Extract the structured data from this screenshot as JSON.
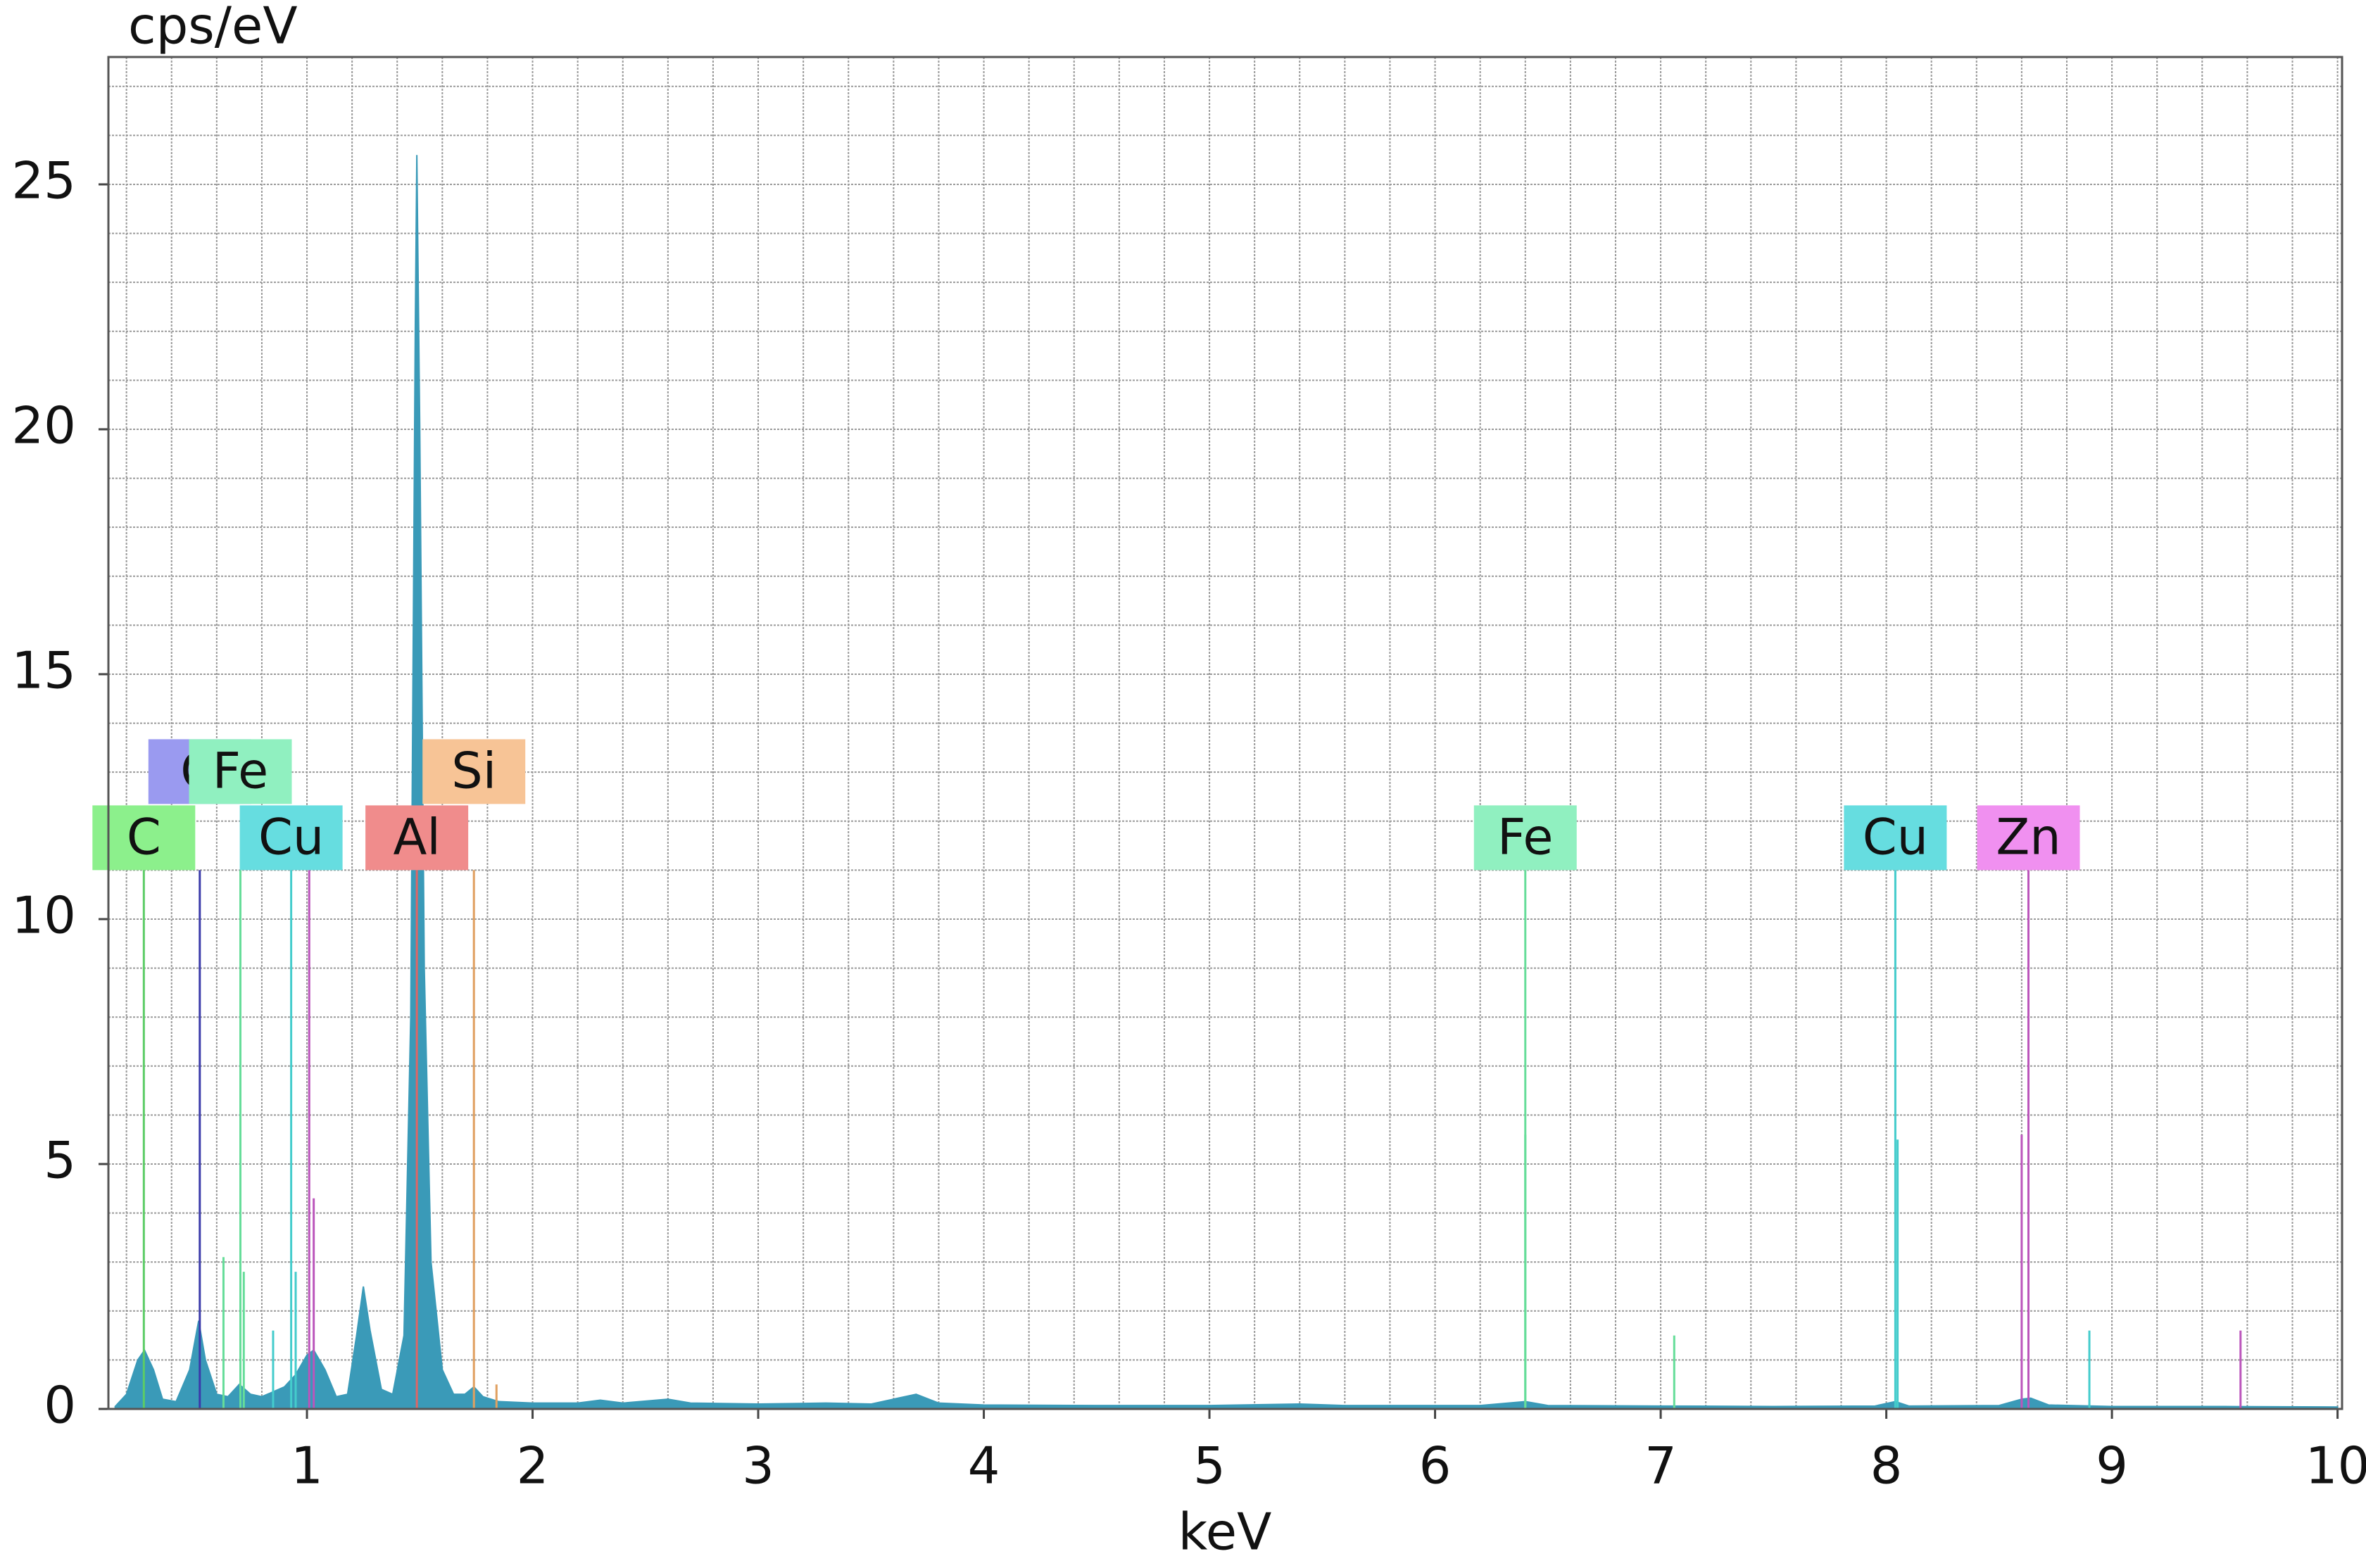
{
  "chart_data": {
    "type": "area",
    "ylabel": "cps/eV",
    "xlabel": "keV",
    "xlim": [
      0.12,
      10.02
    ],
    "ylim": [
      0,
      27.6
    ],
    "xticks": [
      1,
      2,
      3,
      4,
      5,
      6,
      7,
      8,
      9,
      10
    ],
    "yticks": [
      0,
      5,
      10,
      15,
      20,
      25
    ],
    "grid": true,
    "xgrid_step": 0.2,
    "ygrid_step": 1,
    "series": [
      {
        "color": "#3a9ab8",
        "x": [
          0.15,
          0.2,
          0.25,
          0.28,
          0.32,
          0.36,
          0.42,
          0.48,
          0.52,
          0.55,
          0.6,
          0.65,
          0.7,
          0.75,
          0.8,
          0.85,
          0.9,
          0.95,
          1.0,
          1.03,
          1.08,
          1.13,
          1.18,
          1.22,
          1.25,
          1.28,
          1.33,
          1.38,
          1.43,
          1.46,
          1.48,
          1.487,
          1.5,
          1.52,
          1.55,
          1.6,
          1.65,
          1.7,
          1.74,
          1.78,
          1.85,
          2.0,
          2.2,
          2.3,
          2.4,
          2.6,
          2.7,
          3.0,
          3.3,
          3.5,
          3.65,
          3.7,
          3.8,
          4.0,
          4.5,
          5.0,
          5.4,
          5.6,
          6.2,
          6.4,
          6.5,
          7.0,
          7.5,
          7.95,
          8.04,
          8.1,
          8.5,
          8.6,
          8.64,
          8.72,
          9.0,
          9.5,
          10.0
        ],
        "values": [
          0.05,
          0.3,
          1.0,
          1.2,
          0.8,
          0.2,
          0.15,
          0.8,
          1.8,
          1.0,
          0.3,
          0.25,
          0.5,
          0.3,
          0.25,
          0.35,
          0.45,
          0.7,
          1.1,
          1.2,
          0.8,
          0.25,
          0.3,
          1.5,
          2.5,
          1.6,
          0.4,
          0.3,
          1.5,
          8,
          22,
          25.6,
          20,
          9,
          3,
          0.8,
          0.3,
          0.3,
          0.45,
          0.25,
          0.15,
          0.12,
          0.12,
          0.18,
          0.12,
          0.2,
          0.12,
          0.1,
          0.12,
          0.1,
          0.25,
          0.3,
          0.12,
          0.08,
          0.07,
          0.07,
          0.1,
          0.07,
          0.07,
          0.15,
          0.07,
          0.06,
          0.05,
          0.06,
          0.15,
          0.06,
          0.07,
          0.2,
          0.22,
          0.08,
          0.05,
          0.05,
          0.04
        ]
      }
    ],
    "markers": [
      {
        "label": "C",
        "color": "#8cf08c",
        "line_color": "#5ccc66",
        "row": 0,
        "lines": [
          {
            "x": 0.277,
            "y": 11
          }
        ]
      },
      {
        "label": "O",
        "color": "#9a9af0",
        "line_color": "#3a3aaa",
        "row": 1,
        "lines": [
          {
            "x": 0.525,
            "y": 11
          }
        ]
      },
      {
        "label": "Fe",
        "color": "#90f0c0",
        "line_color": "#66dd99",
        "row": 1,
        "lines": [
          {
            "x": 0.705,
            "y": 11
          },
          {
            "x": 0.72,
            "y": 2.8
          },
          {
            "x": 0.63,
            "y": 3.1
          },
          {
            "x": 6.4,
            "y": 5.6
          },
          {
            "x": 7.06,
            "y": 1.5
          }
        ]
      },
      {
        "label": "Cu",
        "color": "#66dde0",
        "line_color": "#44cccc",
        "row": 0,
        "lines": [
          {
            "x": 0.93,
            "y": 11
          },
          {
            "x": 0.95,
            "y": 2.8
          },
          {
            "x": 0.85,
            "y": 1.6
          },
          {
            "x": 8.05,
            "y": 5.5
          },
          {
            "x": 8.9,
            "y": 1.6
          }
        ]
      },
      {
        "label": "Al",
        "color": "#f08c8c",
        "line_color": "#dd6666",
        "row": 0,
        "lines": [
          {
            "x": 1.487,
            "y": 11
          }
        ]
      },
      {
        "label": "Si",
        "color": "#f7c496",
        "line_color": "#e0a060",
        "row": 1,
        "lines": [
          {
            "x": 1.74,
            "y": 11
          },
          {
            "x": 1.84,
            "y": 0.5
          }
        ]
      },
      {
        "label": "Fe",
        "color": "#90f0c0",
        "line_color": "#66dd99",
        "row": 0,
        "lines": [
          {
            "x": 6.4,
            "y": 11
          }
        ]
      },
      {
        "label": "Cu",
        "color": "#66dde0",
        "line_color": "#44cccc",
        "row": 0,
        "lines": [
          {
            "x": 8.04,
            "y": 11
          }
        ]
      },
      {
        "label": "Zn",
        "color": "#f090f0",
        "line_color": "#bb55bb",
        "row": 0,
        "lines": [
          {
            "x": 8.63,
            "y": 11
          },
          {
            "x": 1.01,
            "y": 11
          },
          {
            "x": 1.03,
            "y": 4.3
          },
          {
            "x": 8.6,
            "y": 5.6
          },
          {
            "x": 9.57,
            "y": 1.6
          }
        ]
      }
    ]
  }
}
